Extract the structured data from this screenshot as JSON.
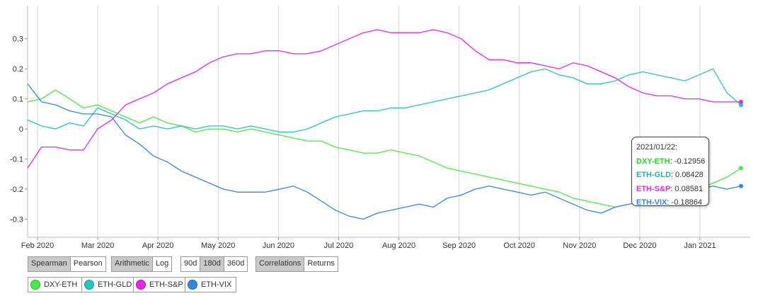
{
  "chart_data": {
    "type": "line",
    "x_labels": [
      "Feb 2020",
      "Mar 2020",
      "Apr 2020",
      "May 2020",
      "Jun 2020",
      "Jul 2020",
      "Aug 2020",
      "Sep 2020",
      "Oct 2020",
      "Nov 2020",
      "Dec 2020",
      "Jan 2021"
    ],
    "y_ticks": [
      0.3,
      0.2,
      0.1,
      0,
      -0.1,
      -0.2,
      -0.3
    ],
    "ylim": [
      -0.36,
      0.41
    ],
    "grid": true,
    "series": [
      {
        "name": "DXY-ETH",
        "color": "#44ee44",
        "values": [
          0.09,
          0.1,
          0.13,
          0.1,
          0.07,
          0.08,
          0.06,
          0.04,
          0.02,
          0.04,
          0.02,
          0.01,
          -0.01,
          0.0,
          0.0,
          -0.01,
          0.0,
          -0.01,
          -0.02,
          -0.03,
          -0.04,
          -0.04,
          -0.06,
          -0.07,
          -0.08,
          -0.08,
          -0.07,
          -0.08,
          -0.09,
          -0.11,
          -0.13,
          -0.14,
          -0.15,
          -0.16,
          -0.17,
          -0.18,
          -0.19,
          -0.2,
          -0.21,
          -0.23,
          -0.24,
          -0.25,
          -0.26,
          -0.25,
          -0.24,
          -0.23,
          -0.23,
          -0.22,
          -0.2,
          -0.18,
          -0.16,
          -0.13
        ]
      },
      {
        "name": "ETH-GLD",
        "color": "#22c8c0",
        "values": [
          0.03,
          0.01,
          0.0,
          0.02,
          0.01,
          0.07,
          0.05,
          0.03,
          0.0,
          0.01,
          0.0,
          0.01,
          0.0,
          0.01,
          0.01,
          0.0,
          0.01,
          0.0,
          -0.01,
          -0.01,
          0.0,
          0.02,
          0.04,
          0.05,
          0.06,
          0.06,
          0.07,
          0.07,
          0.08,
          0.09,
          0.1,
          0.11,
          0.12,
          0.13,
          0.15,
          0.17,
          0.19,
          0.2,
          0.18,
          0.17,
          0.15,
          0.15,
          0.16,
          0.18,
          0.19,
          0.18,
          0.17,
          0.16,
          0.18,
          0.2,
          0.12,
          0.08
        ]
      },
      {
        "name": "ETH-S&P",
        "color": "#ee22ee",
        "values": [
          -0.13,
          -0.06,
          -0.06,
          -0.07,
          -0.07,
          0.0,
          0.03,
          0.08,
          0.1,
          0.12,
          0.15,
          0.17,
          0.19,
          0.22,
          0.24,
          0.25,
          0.25,
          0.26,
          0.26,
          0.25,
          0.25,
          0.26,
          0.28,
          0.3,
          0.32,
          0.33,
          0.32,
          0.32,
          0.32,
          0.33,
          0.32,
          0.3,
          0.26,
          0.23,
          0.23,
          0.22,
          0.22,
          0.21,
          0.2,
          0.22,
          0.21,
          0.19,
          0.17,
          0.14,
          0.12,
          0.11,
          0.11,
          0.1,
          0.1,
          0.09,
          0.09,
          0.09
        ]
      },
      {
        "name": "ETH-VIX",
        "color": "#3388dd",
        "values": [
          0.15,
          0.09,
          0.08,
          0.06,
          0.05,
          0.05,
          0.04,
          -0.02,
          -0.05,
          -0.09,
          -0.11,
          -0.14,
          -0.16,
          -0.18,
          -0.2,
          -0.21,
          -0.21,
          -0.21,
          -0.2,
          -0.19,
          -0.21,
          -0.24,
          -0.27,
          -0.29,
          -0.3,
          -0.28,
          -0.27,
          -0.26,
          -0.25,
          -0.26,
          -0.23,
          -0.22,
          -0.2,
          -0.19,
          -0.2,
          -0.21,
          -0.22,
          -0.21,
          -0.23,
          -0.25,
          -0.27,
          -0.28,
          -0.26,
          -0.25,
          -0.24,
          -0.23,
          -0.22,
          -0.21,
          -0.2,
          -0.19,
          -0.2,
          -0.19
        ]
      }
    ],
    "end_markers": true
  },
  "controls": {
    "group1": [
      "Spearman",
      "Pearson"
    ],
    "group2": [
      "Arithmetic",
      "Log"
    ],
    "group3": [
      "90d",
      "180d",
      "360d"
    ],
    "group4": [
      "Correlations",
      "Returns"
    ],
    "selected": {
      "group1": 0,
      "group2": 0,
      "group3": 1,
      "group4": 0
    }
  },
  "tooltip": {
    "date": "2021/01/22:",
    "rows": [
      {
        "name": "DXY-ETH",
        "value": "-0.12956",
        "color": "#22dd22"
      },
      {
        "name": "ETH-GLD",
        "value": "0.08428",
        "color": "#11bbb3"
      },
      {
        "name": "ETH-S&P",
        "value": "0.08581",
        "color": "#ee22ee"
      },
      {
        "name": "ETH-VIX",
        "value": "-0.18864",
        "color": "#3388dd"
      }
    ]
  },
  "legend": [
    {
      "label": "DXY-ETH",
      "color": "#44ee44"
    },
    {
      "label": "ETH-GLD",
      "color": "#22c8c0"
    },
    {
      "label": "ETH-S&P",
      "color": "#ee22ee"
    },
    {
      "label": "ETH-VIX",
      "color": "#3388dd"
    }
  ]
}
